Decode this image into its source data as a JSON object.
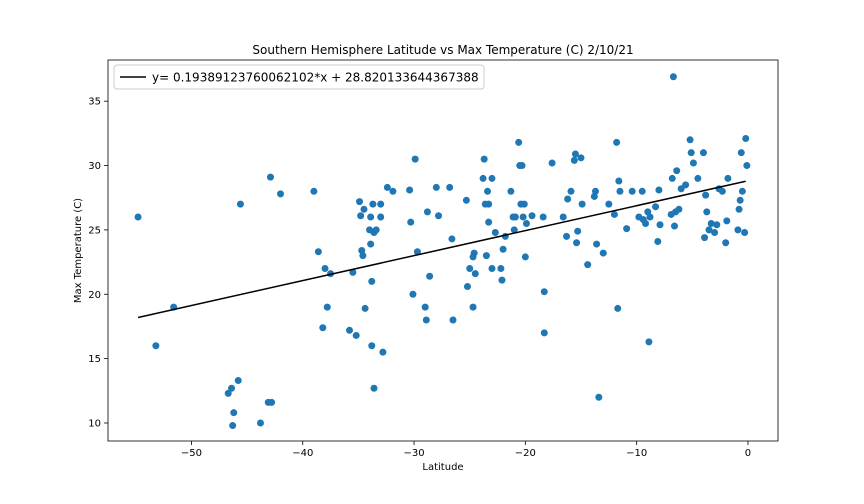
{
  "chart_data": {
    "type": "scatter",
    "title": "Southern Hemisphere Latitude vs Max Temperature (C) 2/10/21",
    "xlabel": "Latitude",
    "ylabel": "Max Temperature (C)",
    "xlim": [
      -57.5,
      2.7
    ],
    "ylim": [
      8.6,
      38.2
    ],
    "xticks": [
      -50,
      -40,
      -30,
      -20,
      -10,
      0
    ],
    "xtick_labels": [
      "−50",
      "−40",
      "−30",
      "−20",
      "−10",
      "0"
    ],
    "yticks": [
      10,
      15,
      20,
      25,
      30,
      35
    ],
    "ytick_labels": [
      "10",
      "15",
      "20",
      "25",
      "30",
      "35"
    ],
    "grid": false,
    "legend_position": "top-left",
    "colors": {
      "points": "#1f77b4",
      "line": "#000000",
      "axes": "#000000"
    },
    "regression": {
      "label": "y= 0.19389123760062102*x + 28.820133644367388",
      "slope": 0.19389123760062102,
      "intercept": 28.820133644367388,
      "x_range": [
        -54.8,
        -0.2
      ]
    },
    "points": [
      [
        -54.8,
        26.0
      ],
      [
        -53.2,
        16.0
      ],
      [
        -51.6,
        19.0
      ],
      [
        -46.7,
        12.3
      ],
      [
        -46.4,
        12.7
      ],
      [
        -46.3,
        9.8
      ],
      [
        -46.2,
        10.8
      ],
      [
        -45.8,
        13.3
      ],
      [
        -45.6,
        27.0
      ],
      [
        -43.8,
        10.0
      ],
      [
        -43.1,
        11.6
      ],
      [
        -42.9,
        29.1
      ],
      [
        -42.8,
        11.6
      ],
      [
        -42.0,
        27.8
      ],
      [
        -39.0,
        28.0
      ],
      [
        -38.6,
        23.3
      ],
      [
        -38.2,
        17.4
      ],
      [
        -38.0,
        22.0
      ],
      [
        -37.8,
        19.0
      ],
      [
        -37.5,
        21.6
      ],
      [
        -35.8,
        17.2
      ],
      [
        -35.5,
        21.7
      ],
      [
        -35.2,
        16.8
      ],
      [
        -34.9,
        27.2
      ],
      [
        -34.8,
        26.1
      ],
      [
        -34.7,
        23.4
      ],
      [
        -34.6,
        23.0
      ],
      [
        -34.5,
        26.6
      ],
      [
        -34.4,
        18.9
      ],
      [
        -34.0,
        25.0
      ],
      [
        -33.9,
        23.9
      ],
      [
        -33.9,
        26.0
      ],
      [
        -33.8,
        21.0
      ],
      [
        -33.8,
        16.0
      ],
      [
        -33.7,
        27.0
      ],
      [
        -33.6,
        24.8
      ],
      [
        -33.6,
        12.7
      ],
      [
        -33.4,
        25.0
      ],
      [
        -33.0,
        27.0
      ],
      [
        -33.0,
        26.0
      ],
      [
        -32.8,
        15.5
      ],
      [
        -32.4,
        28.3
      ],
      [
        -31.9,
        28.0
      ],
      [
        -30.4,
        28.1
      ],
      [
        -30.3,
        25.6
      ],
      [
        -30.1,
        20.0
      ],
      [
        -29.9,
        30.5
      ],
      [
        -29.7,
        23.3
      ],
      [
        -29.0,
        19.0
      ],
      [
        -28.9,
        18.0
      ],
      [
        -28.8,
        26.4
      ],
      [
        -28.6,
        21.4
      ],
      [
        -28.0,
        28.3
      ],
      [
        -27.8,
        26.1
      ],
      [
        -26.8,
        28.3
      ],
      [
        -26.6,
        24.3
      ],
      [
        -26.5,
        18.0
      ],
      [
        -25.3,
        27.3
      ],
      [
        -25.2,
        20.6
      ],
      [
        -25.0,
        22.0
      ],
      [
        -24.7,
        22.9
      ],
      [
        -24.7,
        19.0
      ],
      [
        -24.6,
        23.2
      ],
      [
        -24.5,
        21.6
      ],
      [
        -23.8,
        29.0
      ],
      [
        -23.7,
        30.5
      ],
      [
        -23.6,
        27.0
      ],
      [
        -23.5,
        23.0
      ],
      [
        -23.4,
        28.0
      ],
      [
        -23.3,
        27.0
      ],
      [
        -23.3,
        25.6
      ],
      [
        -23.0,
        22.0
      ],
      [
        -23.0,
        29.0
      ],
      [
        -22.7,
        24.8
      ],
      [
        -22.2,
        22.0
      ],
      [
        -22.1,
        21.1
      ],
      [
        -22.0,
        23.5
      ],
      [
        -21.8,
        24.5
      ],
      [
        -21.3,
        28.0
      ],
      [
        -21.1,
        26.0
      ],
      [
        -21.0,
        25.0
      ],
      [
        -20.9,
        26.0
      ],
      [
        -20.6,
        31.8
      ],
      [
        -20.5,
        30.0
      ],
      [
        -20.4,
        27.0
      ],
      [
        -20.3,
        30.0
      ],
      [
        -20.2,
        26.0
      ],
      [
        -20.1,
        27.0
      ],
      [
        -20.0,
        22.9
      ],
      [
        -19.9,
        25.5
      ],
      [
        -19.4,
        26.1
      ],
      [
        -18.4,
        26.0
      ],
      [
        -18.3,
        20.2
      ],
      [
        -18.3,
        17.0
      ],
      [
        -17.6,
        30.2
      ],
      [
        -16.6,
        26.0
      ],
      [
        -16.3,
        24.5
      ],
      [
        -16.2,
        27.4
      ],
      [
        -15.9,
        28.0
      ],
      [
        -15.6,
        30.4
      ],
      [
        -15.5,
        30.9
      ],
      [
        -15.4,
        24.0
      ],
      [
        -15.3,
        24.9
      ],
      [
        -15.0,
        30.6
      ],
      [
        -14.9,
        27.0
      ],
      [
        -14.4,
        22.3
      ],
      [
        -13.8,
        27.6
      ],
      [
        -13.7,
        28.0
      ],
      [
        -13.6,
        23.9
      ],
      [
        -13.4,
        12.0
      ],
      [
        -13.0,
        23.2
      ],
      [
        -12.5,
        27.0
      ],
      [
        -12.0,
        26.2
      ],
      [
        -11.8,
        31.8
      ],
      [
        -11.7,
        18.9
      ],
      [
        -11.6,
        28.8
      ],
      [
        -11.5,
        28.0
      ],
      [
        -10.9,
        25.1
      ],
      [
        -10.4,
        28.0
      ],
      [
        -9.8,
        26.0
      ],
      [
        -9.5,
        28.0
      ],
      [
        -9.4,
        25.8
      ],
      [
        -9.2,
        25.5
      ],
      [
        -9.0,
        26.4
      ],
      [
        -8.9,
        16.3
      ],
      [
        -8.8,
        26.0
      ],
      [
        -8.3,
        26.8
      ],
      [
        -8.1,
        24.1
      ],
      [
        -8.0,
        28.1
      ],
      [
        -7.9,
        25.4
      ],
      [
        -6.9,
        26.2
      ],
      [
        -6.8,
        29.0
      ],
      [
        -6.7,
        36.9
      ],
      [
        -6.6,
        25.3
      ],
      [
        -6.5,
        26.4
      ],
      [
        -6.4,
        29.6
      ],
      [
        -6.2,
        26.6
      ],
      [
        -6.0,
        28.2
      ],
      [
        -5.6,
        28.5
      ],
      [
        -5.2,
        32.0
      ],
      [
        -5.1,
        31.0
      ],
      [
        -4.9,
        30.2
      ],
      [
        -4.5,
        29.0
      ],
      [
        -4.0,
        31.0
      ],
      [
        -3.9,
        24.4
      ],
      [
        -3.8,
        27.7
      ],
      [
        -3.7,
        26.4
      ],
      [
        -3.5,
        25.0
      ],
      [
        -3.3,
        25.5
      ],
      [
        -3.0,
        24.8
      ],
      [
        -2.8,
        25.4
      ],
      [
        -2.6,
        28.2
      ],
      [
        -2.3,
        28.0
      ],
      [
        -2.0,
        24.0
      ],
      [
        -1.9,
        25.7
      ],
      [
        -1.8,
        29.0
      ],
      [
        -0.9,
        25.0
      ],
      [
        -0.8,
        26.6
      ],
      [
        -0.7,
        27.3
      ],
      [
        -0.6,
        31.0
      ],
      [
        -0.5,
        28.0
      ],
      [
        -0.3,
        24.8
      ],
      [
        -0.2,
        32.1
      ],
      [
        -0.1,
        30.0
      ]
    ]
  }
}
